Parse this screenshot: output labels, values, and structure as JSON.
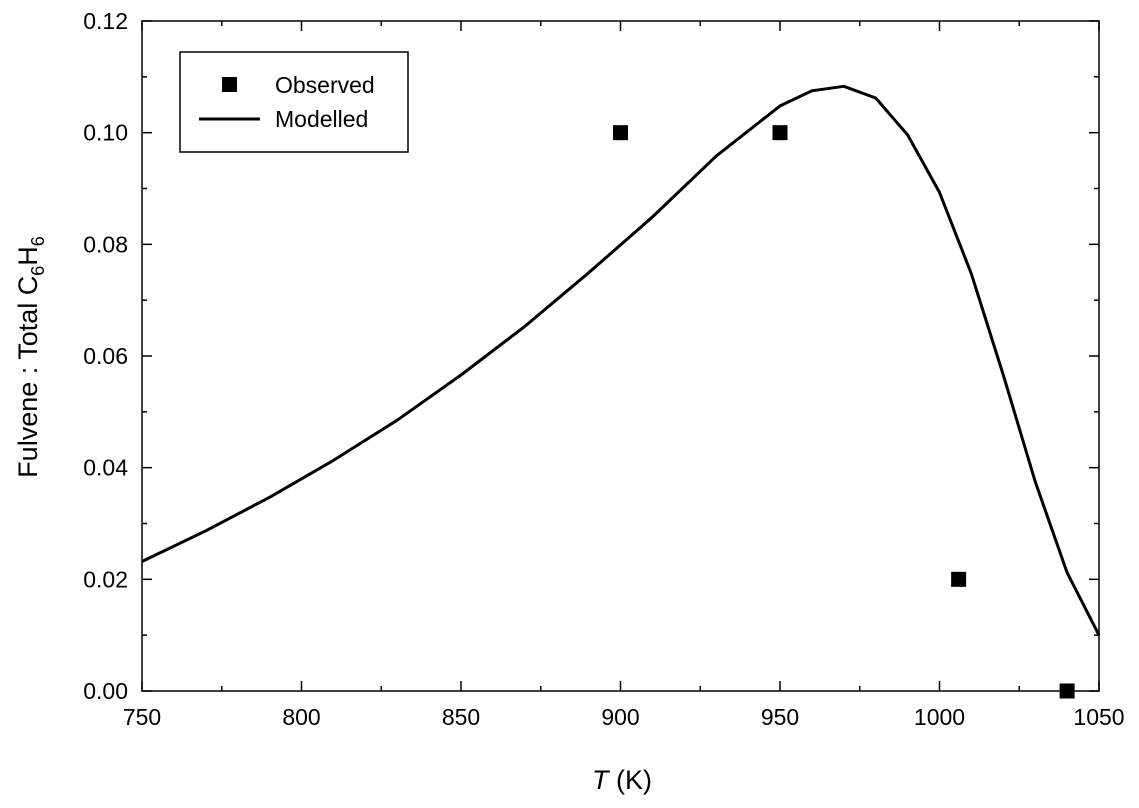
{
  "chart_data": {
    "type": "scatter",
    "xlabel": {
      "var": "T",
      "unit": " (K)"
    },
    "ylabel": {
      "prefix": "Fulvene : Total C",
      "sub1": "6",
      "mid": "H",
      "sub2": "6"
    },
    "xlim": [
      750,
      1050
    ],
    "ylim": [
      0,
      0.12
    ],
    "xticks": [
      750,
      800,
      850,
      900,
      950,
      1000,
      1050
    ],
    "xtick_labels": [
      "750",
      "800",
      "850",
      "900",
      "950",
      "1000",
      "1050"
    ],
    "xminor": [
      775,
      825,
      875,
      925,
      975,
      1025
    ],
    "yticks": [
      0,
      0.02,
      0.04,
      0.06,
      0.08,
      0.1,
      0.12
    ],
    "ytick_labels": [
      "0.00",
      "0.02",
      "0.04",
      "0.06",
      "0.08",
      "0.10",
      "0.12"
    ],
    "yminor": [
      0.01,
      0.03,
      0.05,
      0.07,
      0.09,
      0.11
    ],
    "grid": false,
    "legend_position": "top-left",
    "series": [
      {
        "name": "Observed",
        "kind": "scatter",
        "marker": "square",
        "color": "#000000",
        "x": [
          900,
          950,
          1006,
          1040
        ],
        "y": [
          0.1,
          0.1,
          0.02,
          0.0
        ]
      },
      {
        "name": "Modelled",
        "kind": "line",
        "color": "#000000",
        "x": [
          750,
          770,
          790,
          810,
          830,
          850,
          870,
          890,
          910,
          930,
          950,
          960,
          970,
          980,
          990,
          1000,
          1010,
          1020,
          1030,
          1040,
          1050
        ],
        "y": [
          0.0232,
          0.0287,
          0.0347,
          0.0413,
          0.0485,
          0.0566,
          0.0653,
          0.0749,
          0.0849,
          0.0958,
          0.1048,
          0.1075,
          0.1083,
          0.1062,
          0.0996,
          0.0893,
          0.0747,
          0.0566,
          0.0375,
          0.0212,
          0.01
        ]
      }
    ]
  }
}
